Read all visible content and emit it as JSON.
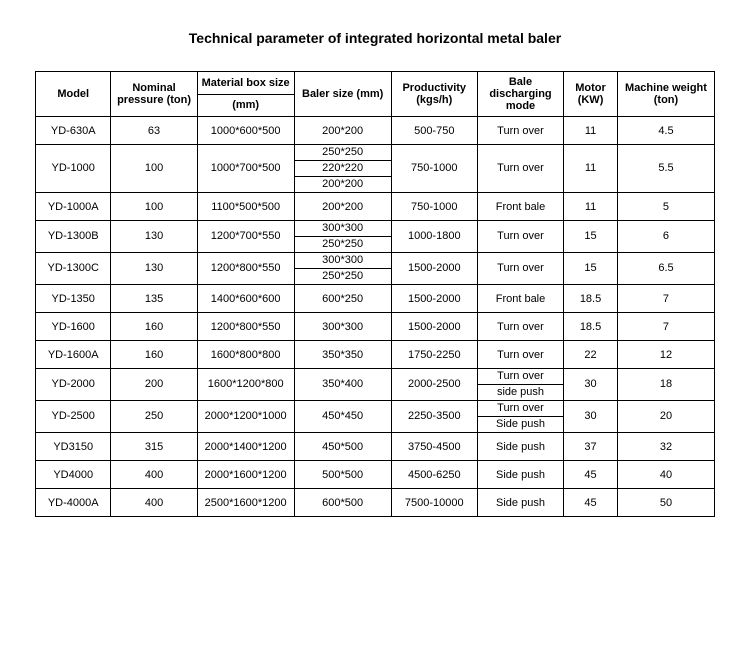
{
  "title": "Technical parameter of integrated horizontal metal baler",
  "headers": {
    "model": "Model",
    "pressure": "Nominal pressure (ton)",
    "boxsize_l1": "Material box size",
    "boxsize_l2": "(mm)",
    "baler": "Baler size (mm)",
    "productivity": "Productivity (kgs/h)",
    "discharge": "Bale discharging mode",
    "motor": "Motor (KW)",
    "weight": "Machine weight (ton)"
  },
  "rows": [
    {
      "model": "YD-630A",
      "pressure": "63",
      "box": "1000*600*500",
      "baler": [
        "200*200"
      ],
      "prod": "500-750",
      "disch": [
        "Turn over"
      ],
      "motor": "11",
      "weight": "4.5"
    },
    {
      "model": "YD-1000",
      "pressure": "100",
      "box": "1000*700*500",
      "baler": [
        "250*250",
        "220*220",
        "200*200"
      ],
      "prod": "750-1000",
      "disch": [
        "Turn over"
      ],
      "motor": "11",
      "weight": "5.5"
    },
    {
      "model": "YD-1000A",
      "pressure": "100",
      "box": "1100*500*500",
      "baler": [
        "200*200"
      ],
      "prod": "750-1000",
      "disch": [
        "Front bale"
      ],
      "motor": "11",
      "weight": "5"
    },
    {
      "model": "YD-1300B",
      "pressure": "130",
      "box": "1200*700*550",
      "baler": [
        "300*300",
        "250*250"
      ],
      "prod": "1000-1800",
      "disch": [
        "Turn over"
      ],
      "motor": "15",
      "weight": "6"
    },
    {
      "model": "YD-1300C",
      "pressure": "130",
      "box": "1200*800*550",
      "baler": [
        "300*300",
        "250*250"
      ],
      "prod": "1500-2000",
      "disch": [
        "Turn over"
      ],
      "motor": "15",
      "weight": "6.5"
    },
    {
      "model": "YD-1350",
      "pressure": "135",
      "box": "1400*600*600",
      "baler": [
        "600*250"
      ],
      "prod": "1500-2000",
      "disch": [
        "Front bale"
      ],
      "motor": "18.5",
      "weight": "7"
    },
    {
      "model": "YD-1600",
      "pressure": "160",
      "box": "1200*800*550",
      "baler": [
        "300*300"
      ],
      "prod": "1500-2000",
      "disch": [
        "Turn over"
      ],
      "motor": "18.5",
      "weight": "7"
    },
    {
      "model": "YD-1600A",
      "pressure": "160",
      "box": "1600*800*800",
      "baler": [
        "350*350"
      ],
      "prod": "1750-2250",
      "disch": [
        "Turn over"
      ],
      "motor": "22",
      "weight": "12"
    },
    {
      "model": "YD-2000",
      "pressure": "200",
      "box": "1600*1200*800",
      "baler": [
        "350*400"
      ],
      "prod": "2000-2500",
      "disch": [
        "Turn over",
        "side push"
      ],
      "motor": "30",
      "weight": "18"
    },
    {
      "model": "YD-2500",
      "pressure": "250",
      "box": "2000*1200*1000",
      "baler": [
        "450*450"
      ],
      "prod": "2250-3500",
      "disch": [
        "Turn over",
        "Side push"
      ],
      "motor": "30",
      "weight": "20"
    },
    {
      "model": "YD3150",
      "pressure": "315",
      "box": "2000*1400*1200",
      "baler": [
        "450*500"
      ],
      "prod": "3750-4500",
      "disch": [
        "Side push"
      ],
      "motor": "37",
      "weight": "32"
    },
    {
      "model": "YD4000",
      "pressure": "400",
      "box": "2000*1600*1200",
      "baler": [
        "500*500"
      ],
      "prod": "4500-6250",
      "disch": [
        "Side push"
      ],
      "motor": "45",
      "weight": "40"
    },
    {
      "model": "YD-4000A",
      "pressure": "400",
      "box": "2500*1600*1200",
      "baler": [
        "600*500"
      ],
      "prod": "7500-10000",
      "disch": [
        "Side push"
      ],
      "motor": "45",
      "weight": "50"
    }
  ],
  "style": {
    "background": "#ffffff",
    "border_color": "#000000",
    "text_color": "#000000",
    "title_fontsize": 14,
    "cell_fontsize": 11
  }
}
